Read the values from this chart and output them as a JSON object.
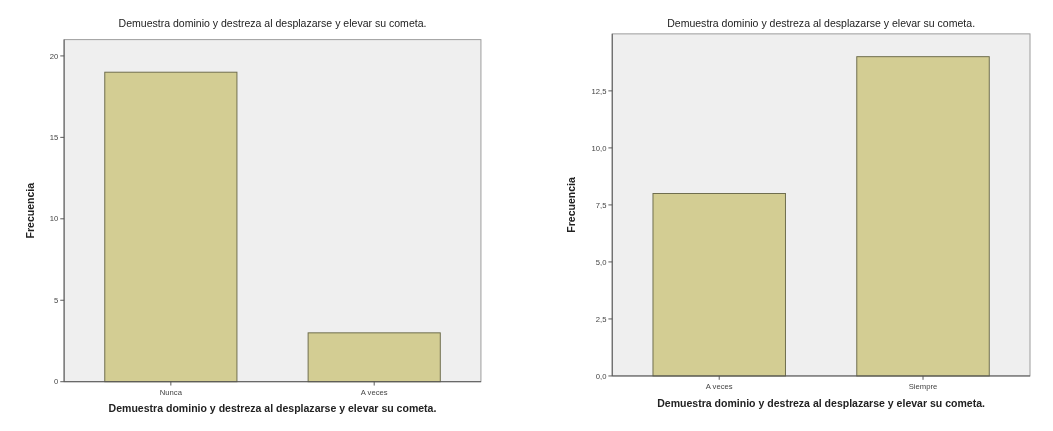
{
  "chart_data": [
    {
      "type": "bar",
      "title": "Demuestra dominio y destreza al desplazarse y elevar su cometa.",
      "xlabel": "Demuestra dominio y destreza al desplazarse y elevar su cometa.",
      "ylabel": "Frecuencia",
      "categories": [
        "Nunca",
        "A veces"
      ],
      "values": [
        19,
        3
      ],
      "color": "#d3cd93",
      "ylim": [
        0,
        21
      ],
      "yticks": [
        0,
        5,
        10,
        15,
        20
      ],
      "grid": false
    },
    {
      "type": "bar",
      "title": "Demuestra dominio y destreza al desplazarse y elevar su cometa.",
      "xlabel": "Demuestra dominio y destreza al desplazarse y elevar su cometa.",
      "ylabel": "Frecuencia",
      "categories": [
        "A veces",
        "Siempre"
      ],
      "values": [
        8,
        14
      ],
      "color": "#d3cd93",
      "ylim": [
        0,
        15
      ],
      "yticks": [
        {
          "value": 0,
          "label": "0,0"
        },
        {
          "value": 2.5,
          "label": "2,5"
        },
        {
          "value": 5,
          "label": "5,0"
        },
        {
          "value": 7.5,
          "label": "7,5"
        },
        {
          "value": 10,
          "label": "10,0"
        },
        {
          "value": 12.5,
          "label": "12,5"
        }
      ],
      "grid": false
    }
  ]
}
